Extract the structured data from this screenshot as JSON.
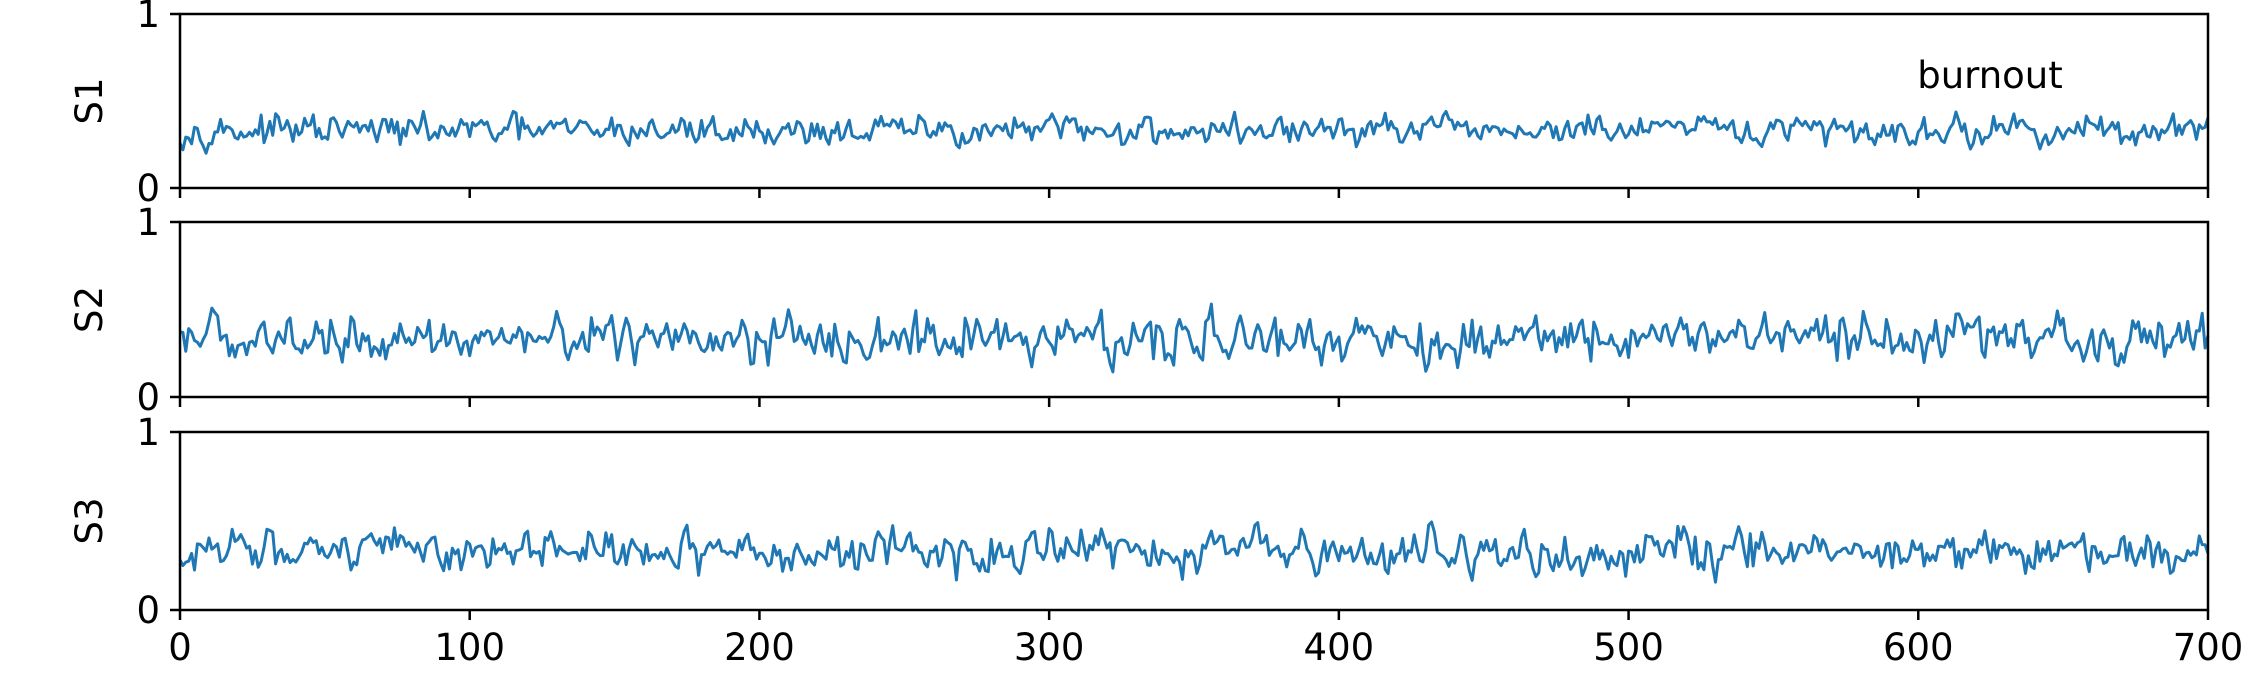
{
  "chart_data": {
    "type": "line",
    "x_range": [
      0,
      700
    ],
    "x_ticks": [
      0,
      100,
      200,
      300,
      400,
      500,
      600,
      700
    ],
    "y_range": [
      0,
      1
    ],
    "y_ticks": [
      0,
      1
    ],
    "line_color": "#1f77b4",
    "grid": false,
    "annotation": "burnout",
    "series": [
      {
        "ylabel": "S1",
        "mean": 0.33,
        "min": 0.2,
        "max": 0.44,
        "amplitude": 0.05
      },
      {
        "ylabel": "S2",
        "mean": 0.33,
        "min": 0.14,
        "max": 0.56,
        "amplitude": 0.08
      },
      {
        "ylabel": "S3",
        "mean": 0.33,
        "min": 0.14,
        "max": 0.52,
        "amplitude": 0.07
      }
    ]
  }
}
